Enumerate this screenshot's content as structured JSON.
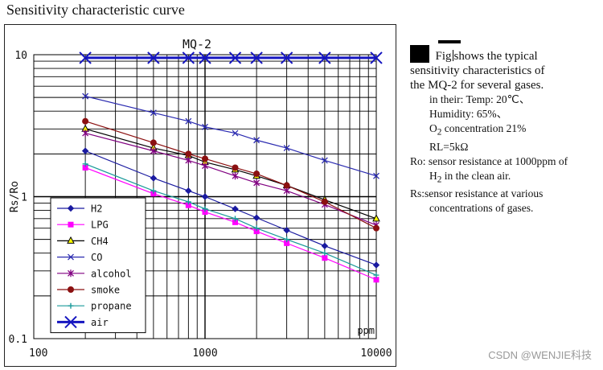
{
  "page": {
    "title": "Sensitivity characteristic curve",
    "watermark": "CSDN @WENJIE科技"
  },
  "description": {
    "fig_word": "Fig",
    "line1_rest": "shows the typical",
    "line2": "sensitivity characteristics of",
    "line3": "the MQ-2 for several gases.",
    "cond_intro": "in their: Temp: 20℃、",
    "humidity": "Humidity: 65%、",
    "o2_prefix": "O",
    "o2_sub": "2",
    "o2_rest": " concentration 21%",
    "rl": "RL=5kΩ",
    "ro_line1": "Ro: sensor resistance at 1000ppm of",
    "ro_h2": "H",
    "ro_sub": "2",
    "ro_rest": " in the clean air.",
    "rs_line1": "Rs:sensor resistance at various",
    "rs_line2": "concentrations of gases."
  },
  "chart_data": {
    "type": "line",
    "title": "MQ-2",
    "xlabel": "ppm",
    "ylabel": "Rs/Ro",
    "xscale": "log",
    "yscale": "log",
    "xlim": [
      100,
      10000
    ],
    "ylim": [
      0.1,
      10
    ],
    "x_ticks": [
      100,
      1000,
      10000
    ],
    "x_tick_labels": [
      "100",
      "1000",
      "10000"
    ],
    "y_ticks": [
      0.1,
      1,
      10
    ],
    "y_tick_labels": [
      "0.1",
      "1",
      "10"
    ],
    "grid": true,
    "legend_position": "bottom-left",
    "series": [
      {
        "name": "H2",
        "color": "#1a1aa0",
        "marker": "diamond",
        "x": [
          200,
          500,
          800,
          1000,
          1500,
          2000,
          3000,
          5000,
          10000
        ],
        "y": [
          2.1,
          1.35,
          1.1,
          1.0,
          0.82,
          0.71,
          0.58,
          0.45,
          0.33
        ]
      },
      {
        "name": "LPG",
        "color": "#ff00ff",
        "marker": "square",
        "x": [
          200,
          500,
          800,
          1000,
          1500,
          2000,
          3000,
          5000,
          10000
        ],
        "y": [
          1.6,
          1.05,
          0.87,
          0.78,
          0.66,
          0.57,
          0.47,
          0.37,
          0.26
        ]
      },
      {
        "name": "CH4",
        "color": "#000000",
        "marker": "triangle",
        "x": [
          200,
          500,
          800,
          1000,
          1500,
          2000,
          3000,
          5000,
          10000
        ],
        "y": [
          3.0,
          2.2,
          1.95,
          1.75,
          1.55,
          1.4,
          1.2,
          0.95,
          0.7
        ]
      },
      {
        "name": "CO",
        "color": "#2a2ab0",
        "marker": "x",
        "x": [
          200,
          500,
          800,
          1000,
          1500,
          2000,
          3000,
          5000,
          10000
        ],
        "y": [
          5.1,
          3.9,
          3.4,
          3.1,
          2.8,
          2.5,
          2.2,
          1.8,
          1.4
        ]
      },
      {
        "name": "alcohol",
        "color": "#800080",
        "marker": "star",
        "x": [
          200,
          500,
          800,
          1000,
          1500,
          2000,
          3000,
          5000,
          10000
        ],
        "y": [
          2.8,
          2.1,
          1.8,
          1.65,
          1.4,
          1.25,
          1.1,
          0.88,
          0.63
        ]
      },
      {
        "name": "smoke",
        "color": "#8b1010",
        "marker": "circle",
        "x": [
          200,
          500,
          800,
          1000,
          1500,
          2000,
          3000,
          5000,
          10000
        ],
        "y": [
          3.4,
          2.4,
          2.0,
          1.85,
          1.6,
          1.45,
          1.2,
          0.92,
          0.6
        ]
      },
      {
        "name": "propane",
        "color": "#1a9a9a",
        "marker": "plus",
        "x": [
          200,
          500,
          800,
          1000,
          1500,
          2000,
          3000,
          5000,
          10000
        ],
        "y": [
          1.7,
          1.1,
          0.92,
          0.82,
          0.7,
          0.6,
          0.5,
          0.4,
          0.28
        ]
      },
      {
        "name": "air",
        "color": "#1515c0",
        "marker": "x",
        "lineWidth": 3,
        "x": [
          200,
          500,
          800,
          1000,
          1500,
          2000,
          3000,
          5000,
          10000
        ],
        "y": [
          9.5,
          9.5,
          9.5,
          9.5,
          9.5,
          9.5,
          9.5,
          9.5,
          9.5
        ]
      }
    ]
  }
}
